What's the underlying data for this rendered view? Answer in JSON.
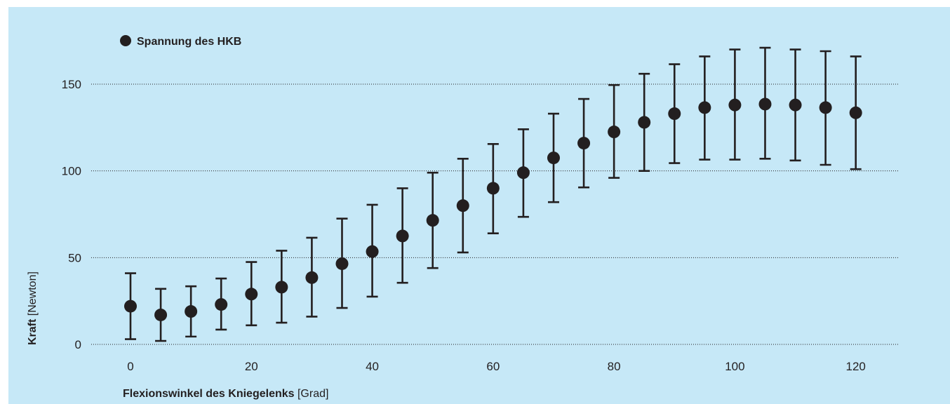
{
  "chart_data": {
    "type": "scatter",
    "series": [
      {
        "name": "Spannung des HKB",
        "x": [
          0,
          5,
          10,
          15,
          20,
          25,
          30,
          35,
          40,
          45,
          50,
          55,
          60,
          65,
          70,
          75,
          80,
          85,
          90,
          95,
          100,
          105,
          110,
          115,
          120
        ],
        "y": [
          22,
          17,
          19,
          23,
          29,
          33,
          38.5,
          46.5,
          53.5,
          62.5,
          71.5,
          80,
          90,
          99,
          107.5,
          116,
          122.5,
          128,
          133,
          136.5,
          138,
          138.5,
          138,
          136.5,
          133.5
        ],
        "err_low": [
          3,
          2,
          4.5,
          8.5,
          11,
          12.5,
          16,
          21,
          27.5,
          35.5,
          44,
          53,
          64,
          73.5,
          82,
          90.5,
          96,
          100,
          104.5,
          106.5,
          106.5,
          107,
          106,
          103.5,
          101
        ],
        "err_high": [
          41,
          32,
          33.5,
          38,
          47.5,
          54,
          61.5,
          72.5,
          80.5,
          90,
          99,
          107,
          115.5,
          124,
          133,
          141.5,
          149.5,
          156,
          161.5,
          166,
          170,
          171,
          170,
          169,
          166
        ]
      }
    ],
    "xticks": [
      "0",
      "20",
      "40",
      "60",
      "80",
      "100",
      "120"
    ],
    "yticks": [
      "0",
      "50",
      "100",
      "150"
    ],
    "xlim": [
      -6.5,
      127
    ],
    "ylim": [
      0,
      150
    ],
    "xlabel": {
      "bold": "Flexionswinkel des Kniegelenks",
      "unit": " [Grad]"
    },
    "ylabel": {
      "bold": "Kraft",
      "unit": " [Newton]"
    },
    "legend": {
      "label": "Spannung des HKB",
      "placement": "top-left"
    },
    "grid": "horizontal-dotted",
    "colors": {
      "background": "#c6e8f7",
      "marker": "#231f20",
      "grid": "#231f20"
    }
  }
}
